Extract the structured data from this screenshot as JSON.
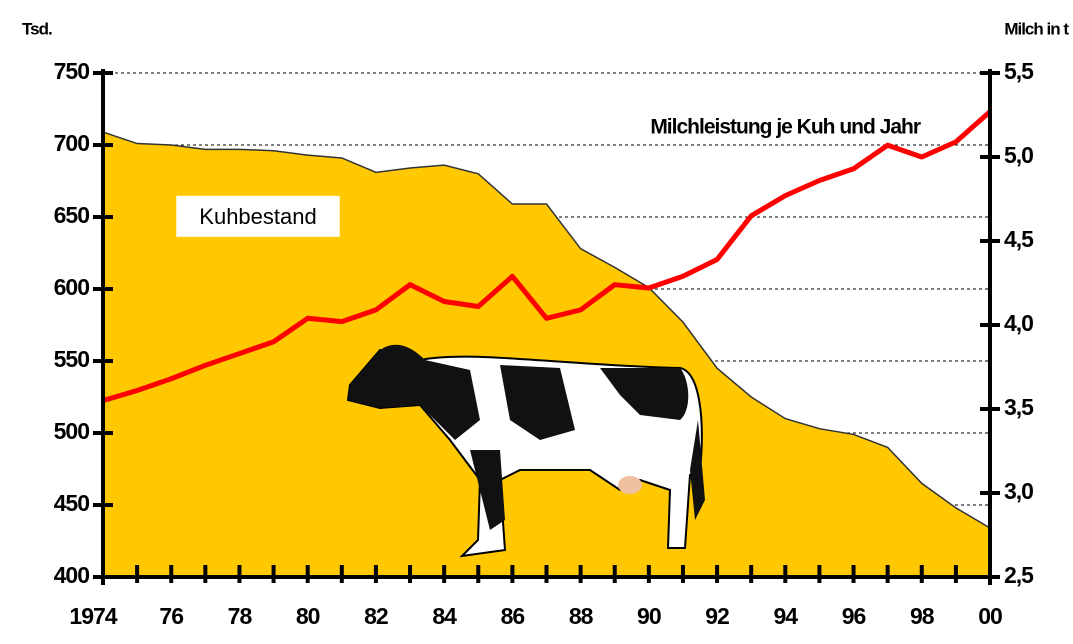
{
  "chart_data": {
    "type": "combo",
    "y_label": "Tsd.",
    "y2_label": "Milch in t",
    "categories": [
      "1974",
      null,
      "76",
      null,
      "78",
      null,
      "80",
      null,
      "82",
      null,
      "84",
      null,
      "86",
      null,
      "88",
      null,
      "90",
      null,
      "92",
      null,
      "94",
      null,
      "96",
      null,
      "98",
      null,
      "00"
    ],
    "series": [
      {
        "name": "Kuhbestand",
        "type": "area",
        "color": "#ffc800",
        "values": [
          709,
          701,
          700,
          697,
          697,
          696,
          693,
          691,
          681,
          684,
          686,
          680,
          659,
          659,
          628,
          615,
          601,
          577,
          545,
          525,
          510,
          503,
          499,
          490,
          465,
          448,
          434
        ]
      },
      {
        "name": "Milchleistung je Kuh und Jahr",
        "type": "line",
        "axis": "y2",
        "color": "#ff0000",
        "values": [
          3.55,
          3.61,
          3.68,
          3.76,
          3.83,
          3.9,
          4.04,
          4.02,
          4.09,
          4.24,
          4.14,
          4.11,
          4.29,
          4.04,
          4.09,
          4.24,
          4.22,
          4.29,
          4.39,
          4.65,
          4.77,
          4.86,
          4.93,
          5.07,
          5.0,
          5.09,
          5.27
        ]
      }
    ],
    "ylim": [
      400,
      750
    ],
    "yticks": [
      400,
      450,
      500,
      550,
      600,
      650,
      700,
      750
    ],
    "y2lim": [
      2.5,
      5.5
    ],
    "y2ticks": [
      {
        "value": 2.5,
        "label": "2,5"
      },
      {
        "value": 3.0,
        "label": "3,0"
      },
      {
        "value": 3.5,
        "label": "3,5"
      },
      {
        "value": 4.0,
        "label": "4,0"
      },
      {
        "value": 4.5,
        "label": "4,5"
      },
      {
        "value": 5.0,
        "label": "5,0"
      },
      {
        "value": 5.5,
        "label": "5,5"
      }
    ],
    "grid": true
  }
}
